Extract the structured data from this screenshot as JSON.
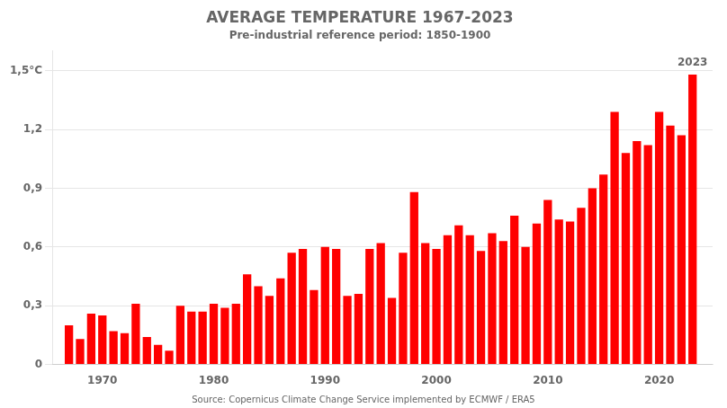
{
  "chart_data": {
    "type": "bar",
    "title": "AVERAGE TEMPERATURE 1967-2023",
    "subtitle": "Pre-industrial reference period: 1850-1900",
    "source": "Source: Copernicus Climate Change Service implemented by ECMWF / ERA5",
    "x": [
      1967,
      1968,
      1969,
      1970,
      1971,
      1972,
      1973,
      1974,
      1975,
      1976,
      1977,
      1978,
      1979,
      1980,
      1981,
      1982,
      1983,
      1984,
      1985,
      1986,
      1987,
      1988,
      1989,
      1990,
      1991,
      1992,
      1993,
      1994,
      1995,
      1996,
      1997,
      1998,
      1999,
      2000,
      2001,
      2002,
      2003,
      2004,
      2005,
      2006,
      2007,
      2008,
      2009,
      2010,
      2011,
      2012,
      2013,
      2014,
      2015,
      2016,
      2017,
      2018,
      2019,
      2020,
      2021,
      2022,
      2023
    ],
    "values": [
      0.2,
      0.13,
      0.26,
      0.25,
      0.17,
      0.16,
      0.31,
      0.14,
      0.1,
      0.07,
      0.3,
      0.27,
      0.27,
      0.31,
      0.29,
      0.31,
      0.46,
      0.4,
      0.35,
      0.44,
      0.57,
      0.59,
      0.38,
      0.6,
      0.59,
      0.35,
      0.36,
      0.59,
      0.62,
      0.34,
      0.57,
      0.88,
      0.62,
      0.59,
      0.66,
      0.71,
      0.66,
      0.58,
      0.67,
      0.63,
      0.76,
      0.6,
      0.72,
      0.84,
      0.74,
      0.73,
      0.8,
      0.9,
      0.97,
      1.29,
      1.08,
      1.14,
      1.12,
      1.29,
      1.22,
      1.17,
      1.48
    ],
    "color": "#FF0000",
    "xlim": [
      1965.5,
      2024.8
    ],
    "xticks": [
      1970,
      1980,
      1990,
      2000,
      2010,
      2020
    ],
    "ylim": [
      0,
      1.6
    ],
    "yticks": [
      0,
      {
        "value": 0.3,
        "label": "0,3"
      },
      {
        "value": 0.6,
        "label": "0,6"
      },
      {
        "value": 0.9,
        "label": "0,9"
      },
      {
        "value": 1.2,
        "label": "1,2"
      },
      {
        "value": 1.5,
        "label": "1,5°C"
      }
    ],
    "grid": true,
    "annotations": [
      {
        "text": "2023",
        "x": 2023,
        "y": 1.505
      }
    ]
  }
}
